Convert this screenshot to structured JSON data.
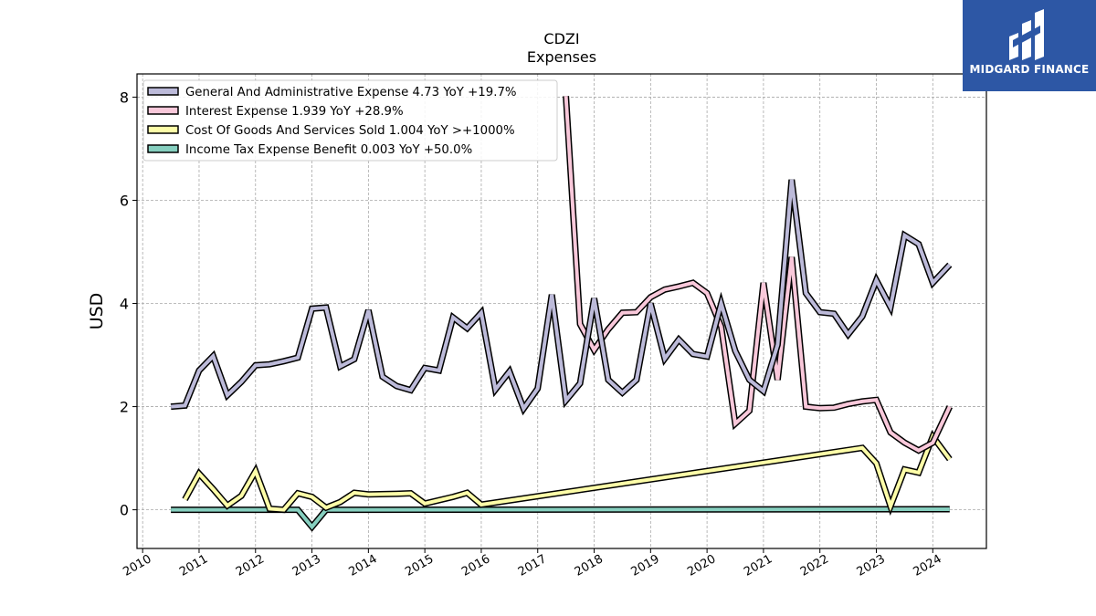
{
  "chart_data": {
    "type": "line",
    "title": "CDZI",
    "subtitle": "Expenses",
    "ylabel": "USD",
    "xlabel": "",
    "xlim": [
      2009.9,
      2024.95
    ],
    "ylim": [
      -0.75,
      8.45
    ],
    "yticks": [
      0,
      2,
      4,
      6,
      8
    ],
    "xticks": [
      "2010",
      "2011",
      "2012",
      "2013",
      "2014",
      "2015",
      "2016",
      "2017",
      "2018",
      "2019",
      "2020",
      "2021",
      "2022",
      "2023",
      "2024"
    ],
    "grid": true,
    "legend_position": "top-left",
    "series": [
      {
        "name": "General And Administrative Expense",
        "legend_label": "General And Administrative Expense  4.73 YoY +19.7%",
        "color": "#bcbad9",
        "points": [
          [
            2010.5,
            2.0
          ],
          [
            2010.75,
            2.02
          ],
          [
            2011.0,
            2.7
          ],
          [
            2011.25,
            2.98
          ],
          [
            2011.5,
            2.22
          ],
          [
            2011.75,
            2.48
          ],
          [
            2012.0,
            2.8
          ],
          [
            2012.25,
            2.82
          ],
          [
            2012.5,
            2.88
          ],
          [
            2012.75,
            2.95
          ],
          [
            2013.0,
            3.9
          ],
          [
            2013.25,
            3.92
          ],
          [
            2013.5,
            2.78
          ],
          [
            2013.75,
            2.92
          ],
          [
            2014.0,
            3.87
          ],
          [
            2014.25,
            2.58
          ],
          [
            2014.5,
            2.4
          ],
          [
            2014.75,
            2.32
          ],
          [
            2015.0,
            2.75
          ],
          [
            2015.25,
            2.7
          ],
          [
            2015.5,
            3.73
          ],
          [
            2015.75,
            3.52
          ],
          [
            2016.0,
            3.82
          ],
          [
            2016.25,
            2.33
          ],
          [
            2016.5,
            2.68
          ],
          [
            2016.75,
            1.96
          ],
          [
            2017.0,
            2.35
          ],
          [
            2017.25,
            4.17
          ],
          [
            2017.5,
            2.12
          ],
          [
            2017.75,
            2.45
          ],
          [
            2018.0,
            4.1
          ],
          [
            2018.25,
            2.52
          ],
          [
            2018.5,
            2.27
          ],
          [
            2018.75,
            2.52
          ],
          [
            2019.0,
            4.0
          ],
          [
            2019.25,
            2.93
          ],
          [
            2019.5,
            3.3
          ],
          [
            2019.75,
            3.02
          ],
          [
            2020.0,
            2.97
          ],
          [
            2020.25,
            4.0
          ],
          [
            2020.5,
            3.08
          ],
          [
            2020.75,
            2.52
          ],
          [
            2021.0,
            2.3
          ],
          [
            2021.25,
            3.2
          ],
          [
            2021.5,
            6.4
          ],
          [
            2021.75,
            4.2
          ],
          [
            2022.0,
            3.83
          ],
          [
            2022.25,
            3.8
          ],
          [
            2022.5,
            3.4
          ],
          [
            2022.75,
            3.75
          ],
          [
            2023.0,
            4.45
          ],
          [
            2023.25,
            3.93
          ],
          [
            2023.5,
            5.32
          ],
          [
            2023.75,
            5.15
          ],
          [
            2024.0,
            4.4
          ],
          [
            2024.3,
            4.75
          ]
        ]
      },
      {
        "name": "Interest Expense",
        "legend_label": "Interest Expense  1.939 YoY +28.9%",
        "color": "#f9c8da",
        "points": [
          [
            2017.5,
            8.02
          ],
          [
            2017.75,
            3.6
          ],
          [
            2018.0,
            3.1
          ],
          [
            2018.25,
            3.5
          ],
          [
            2018.5,
            3.82
          ],
          [
            2018.75,
            3.83
          ],
          [
            2019.0,
            4.12
          ],
          [
            2019.25,
            4.27
          ],
          [
            2019.5,
            4.33
          ],
          [
            2019.75,
            4.4
          ],
          [
            2020.0,
            4.2
          ],
          [
            2020.25,
            3.55
          ],
          [
            2020.5,
            1.67
          ],
          [
            2020.75,
            1.92
          ],
          [
            2021.0,
            4.4
          ],
          [
            2021.25,
            2.52
          ],
          [
            2021.5,
            4.9
          ],
          [
            2021.75,
            2.0
          ],
          [
            2022.0,
            1.97
          ],
          [
            2022.25,
            1.98
          ],
          [
            2022.5,
            2.05
          ],
          [
            2022.75,
            2.1
          ],
          [
            2023.0,
            2.13
          ],
          [
            2023.25,
            1.5
          ],
          [
            2023.5,
            1.3
          ],
          [
            2023.75,
            1.15
          ],
          [
            2024.0,
            1.3
          ],
          [
            2024.3,
            2.0
          ]
        ]
      },
      {
        "name": "Cost Of Goods And Services Sold",
        "legend_label": "Cost Of Goods And Services Sold  1.004 YoY >+1000%",
        "color": "#fdfda8",
        "points": [
          [
            2010.75,
            0.2
          ],
          [
            2011.0,
            0.7
          ],
          [
            2011.25,
            0.4
          ],
          [
            2011.5,
            0.08
          ],
          [
            2011.75,
            0.27
          ],
          [
            2012.0,
            0.75
          ],
          [
            2012.25,
            0.02
          ],
          [
            2012.5,
            0.0
          ],
          [
            2012.75,
            0.32
          ],
          [
            2013.0,
            0.25
          ],
          [
            2013.25,
            0.04
          ],
          [
            2013.5,
            0.15
          ],
          [
            2013.75,
            0.33
          ],
          [
            2014.0,
            0.3
          ],
          [
            2014.5,
            0.31
          ],
          [
            2014.75,
            0.32
          ],
          [
            2015.0,
            0.12
          ],
          [
            2015.5,
            0.25
          ],
          [
            2015.75,
            0.33
          ],
          [
            2016.0,
            0.1
          ],
          [
            2022.75,
            1.2
          ],
          [
            2023.0,
            0.9
          ],
          [
            2023.25,
            0.07
          ],
          [
            2023.5,
            0.78
          ],
          [
            2023.75,
            0.72
          ],
          [
            2024.0,
            1.42
          ],
          [
            2024.3,
            0.98
          ]
        ]
      },
      {
        "name": "Income Tax Expense Benefit",
        "legend_label": "Income Tax Expense Benefit  0.003 YoY +50.0%",
        "color": "#86cfbf",
        "points": [
          [
            2010.5,
            0.0
          ],
          [
            2012.75,
            0.0
          ],
          [
            2013.0,
            -0.33
          ],
          [
            2013.25,
            0.0
          ],
          [
            2024.3,
            0.01
          ]
        ]
      }
    ]
  },
  "logo": {
    "text": "MIDGARD FINANCE",
    "colors": {
      "background": "#2d57a5",
      "foreground": "#ffffff"
    }
  }
}
